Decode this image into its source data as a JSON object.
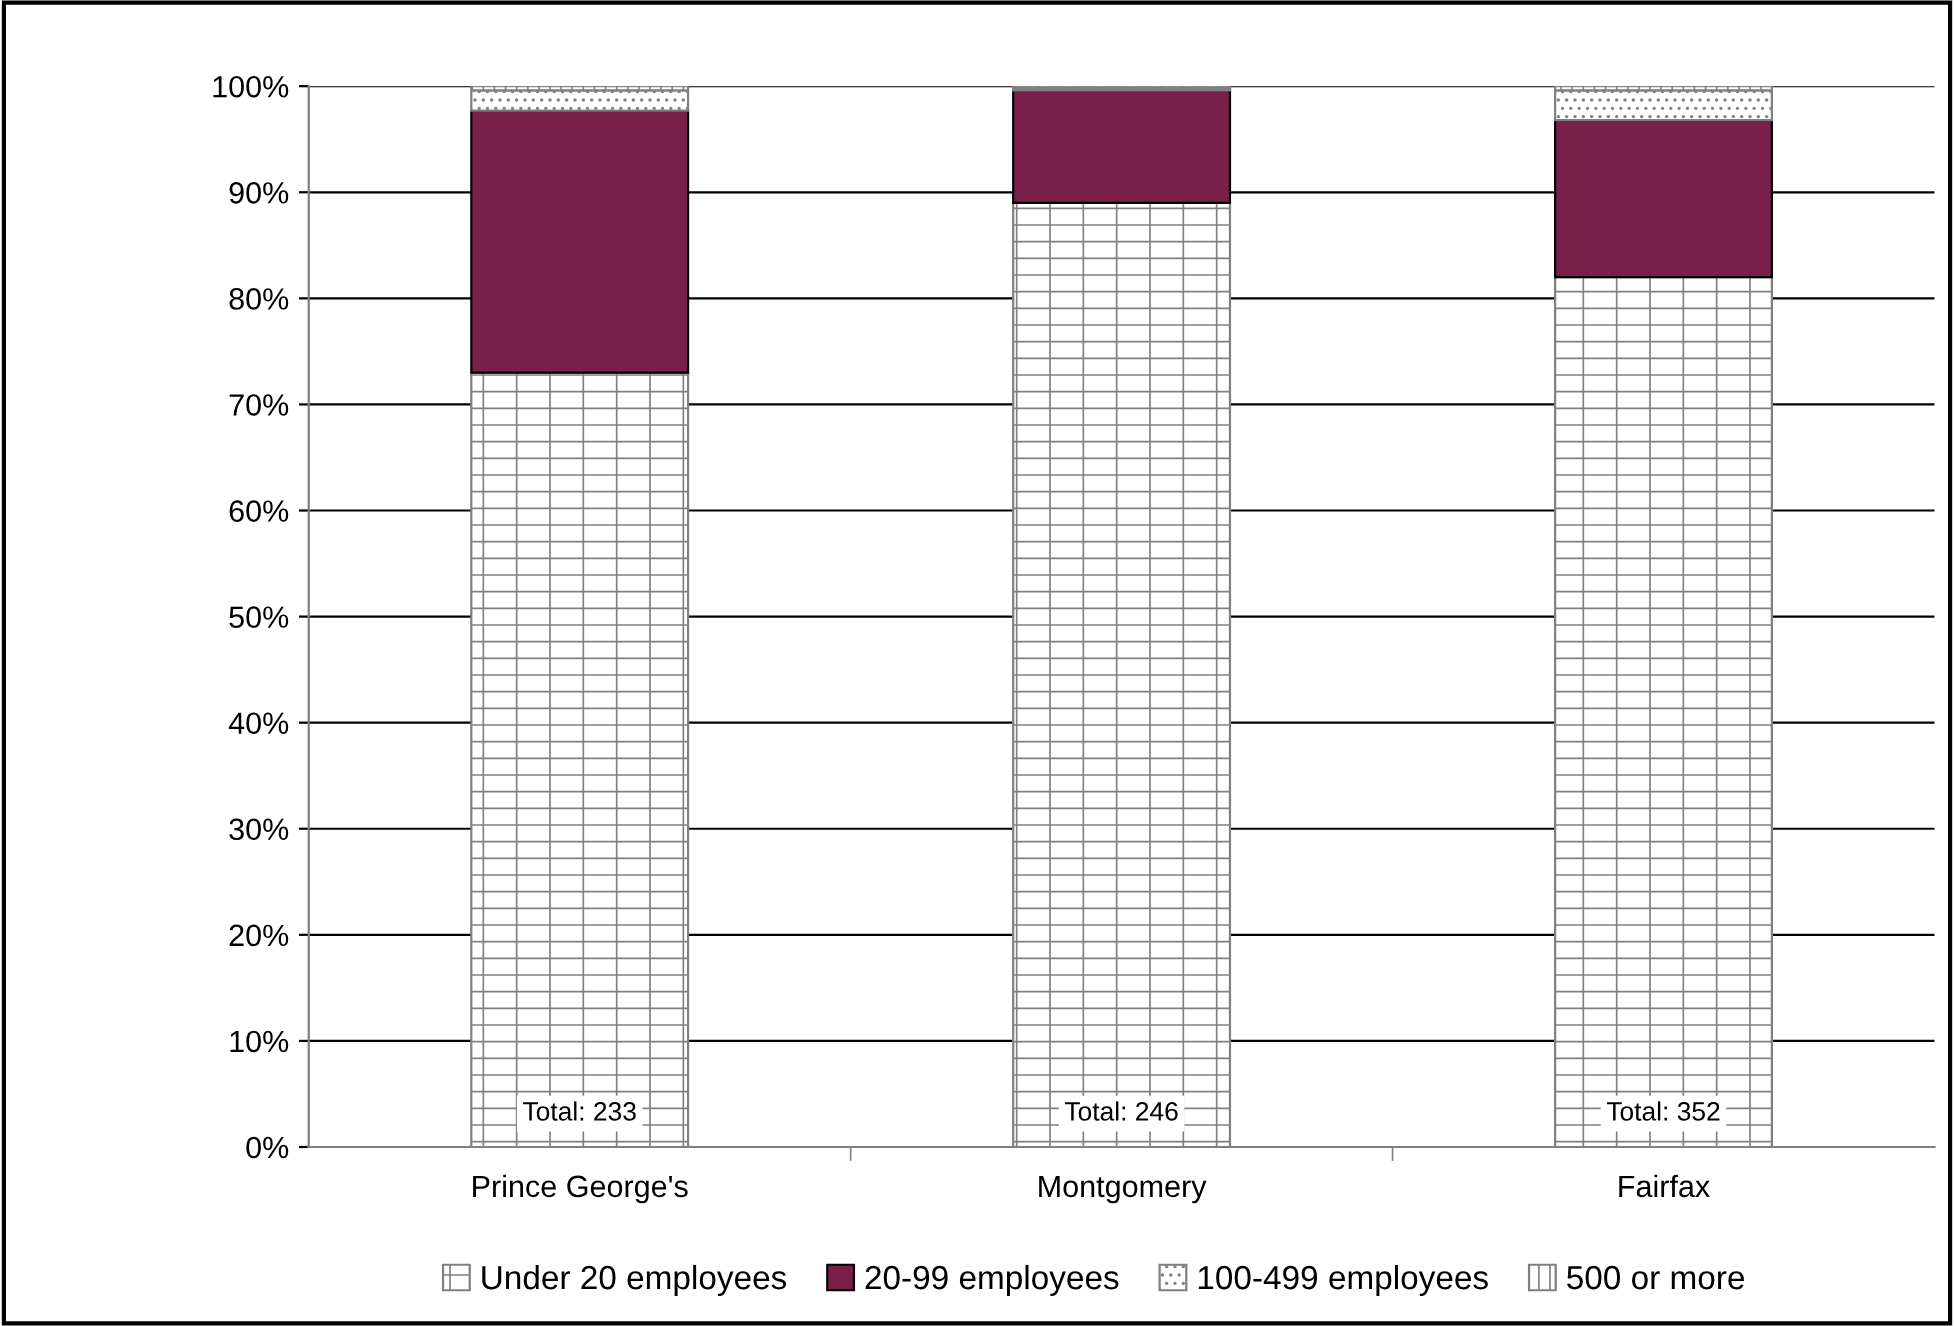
{
  "chart_data": {
    "type": "bar",
    "stacked": true,
    "categories": [
      "Prince George's",
      "Montgomery",
      "Fairfax"
    ],
    "series": [
      {
        "name": "Under 20 employees",
        "color": "#808080",
        "values": [
          73.0,
          89.0,
          82.0
        ]
      },
      {
        "name": "20-99 employees",
        "color": "#7a1f4a",
        "values": [
          24.7,
          10.6,
          14.8
        ]
      },
      {
        "name": "100-499 employees",
        "color": "#808080",
        "values": [
          1.9,
          0.2,
          2.8
        ]
      },
      {
        "name": "500 or more",
        "color": "#808080",
        "values": [
          0.4,
          0.2,
          0.4
        ]
      }
    ],
    "ylim": [
      0,
      100
    ],
    "yticks": [
      {
        "value": 0,
        "label": "0%"
      },
      {
        "value": 10,
        "label": "10%"
      },
      {
        "value": 20,
        "label": "20%"
      },
      {
        "value": 30,
        "label": "30%"
      },
      {
        "value": 40,
        "label": "40%"
      },
      {
        "value": 50,
        "label": "50%"
      },
      {
        "value": 60,
        "label": "60%"
      },
      {
        "value": 70,
        "label": "70%"
      },
      {
        "value": 80,
        "label": "80%"
      },
      {
        "value": 90,
        "label": "90%"
      },
      {
        "value": 100,
        "label": "100%"
      }
    ],
    "grid": "y",
    "legend": "bottom",
    "annotations": [
      "Total: 233",
      "Total: 246",
      "Total: 352"
    ]
  }
}
